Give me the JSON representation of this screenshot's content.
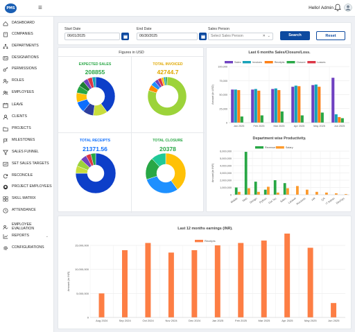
{
  "brand": {
    "logo_text": "PMS"
  },
  "header": {
    "greeting": "Hello! Admin"
  },
  "sidebar": {
    "items": [
      {
        "label": "DASHBOARD",
        "icon": "home-icon"
      },
      {
        "label": "COMPANIES",
        "icon": "building-icon"
      },
      {
        "label": "DEPARTMENTS",
        "icon": "sitemap-icon"
      },
      {
        "label": "DESIGNATIONS",
        "icon": "id-card-icon"
      },
      {
        "label": "PERMISSIONS",
        "icon": "key-icon"
      },
      {
        "label": "ROLES",
        "icon": "user-shield-icon"
      },
      {
        "label": "EMPLOYEES",
        "icon": "users-icon"
      },
      {
        "label": "LEAVE",
        "icon": "calendar-icon"
      },
      {
        "label": "CLIENTS",
        "icon": "user-icon"
      },
      {
        "label": "PROJECTS",
        "icon": "folder-icon"
      },
      {
        "label": "MILESTONES",
        "icon": "flag-icon"
      },
      {
        "label": "SALES FUNNEL",
        "icon": "funnel-icon"
      },
      {
        "label": "SET SALES TARGETS",
        "icon": "target-icon"
      },
      {
        "label": "RECONCILE",
        "icon": "refresh-icon"
      },
      {
        "label": "PROJECT EMPLOYEES",
        "icon": "github-icon"
      },
      {
        "label": "SKILL MATRIX",
        "icon": "grid-icon"
      },
      {
        "label": "ATTENDANCE",
        "icon": "clock-icon"
      },
      {
        "label": "EMPLOYEE\nEVALUATION",
        "icon": "person-check-icon"
      },
      {
        "label": "REPORTS",
        "icon": "chart-icon"
      },
      {
        "label": "CONFIGURATIONS",
        "icon": "gear-icon"
      }
    ]
  },
  "filters": {
    "start_label": "Start Date",
    "start_value": "06/01/2025",
    "end_label": "End Date",
    "end_value": "06/30/2025",
    "sales_label": "Sales Person",
    "sales_placeholder": "Select Sales Person",
    "search": "Search",
    "reset": "Reset"
  },
  "figures": {
    "title": "Figures in USD",
    "cards": [
      {
        "label": "EXPECTED SALES",
        "value": "208855",
        "color": "#28a745"
      },
      {
        "label": "TOTAL INVOICED",
        "value": "42744.7",
        "color": "#e0a800"
      },
      {
        "label": "TOTAL RECEIPTS",
        "value": "21371.56",
        "color": "#0d6efd"
      },
      {
        "label": "TOTAL CLOSURE",
        "value": "20378",
        "color": "#28a745"
      }
    ]
  },
  "chart_data": [
    {
      "type": "pie",
      "title": "",
      "donut": true,
      "values": [
        40,
        12,
        9,
        9,
        8,
        6,
        5,
        4,
        4,
        3
      ],
      "colors": [
        "#0d3fc9",
        "#c8dd3c",
        "#2c3e9e",
        "#0d6efd",
        "#ffc107",
        "#28a745",
        "#1e7e34",
        "#6f42c1",
        "#dc3545",
        "#17a2b8"
      ]
    },
    {
      "type": "pie",
      "title": "",
      "donut": true,
      "values": [
        80,
        5,
        4,
        3,
        3,
        2,
        1.5,
        1.5
      ],
      "colors": [
        "#9cd33a",
        "#ff8c00",
        "#1e90ff",
        "#6f42c1",
        "#dc3545",
        "#ffc107",
        "#17a2b8",
        "#28a745"
      ]
    },
    {
      "type": "pie",
      "title": "",
      "donut": true,
      "values": [
        75,
        6,
        6,
        5,
        4,
        4
      ],
      "colors": [
        "#0d3fc9",
        "#c8dd3c",
        "#9cd33a",
        "#6f42c1",
        "#dc3545",
        "#28a745"
      ]
    },
    {
      "type": "pie",
      "title": "",
      "donut": true,
      "values": [
        40,
        30,
        18,
        12
      ],
      "colors": [
        "#ffc107",
        "#1e90ff",
        "#28a745",
        "#20c997"
      ]
    },
    {
      "type": "bar",
      "title": "Last 6 months Sales/Closure/Loss.",
      "ylabel": "Amount (in USD)",
      "categories": [
        "Jan 2025",
        "Feb 2025",
        "Mar 2025",
        "Apr 2025",
        "May 2025",
        "Jun 2025"
      ],
      "ylim": [
        0,
        100000
      ],
      "yticks": [
        0,
        25000,
        50000,
        75000,
        100000
      ],
      "yticklabels": [
        "0",
        "25,000",
        "50,000",
        "75,000",
        "100,000"
      ],
      "legend_position": "top",
      "series": [
        {
          "name": "Sales",
          "color": "#6f42c1",
          "values": [
            59000,
            59000,
            60000,
            64000,
            67000,
            80000
          ]
        },
        {
          "name": "Invoices",
          "color": "#17a2b8",
          "values": [
            59000,
            60000,
            61000,
            66000,
            68000,
            15000
          ]
        },
        {
          "name": "Receipts",
          "color": "#fd7e14",
          "values": [
            58000,
            57000,
            58000,
            65000,
            64000,
            10000
          ]
        },
        {
          "name": "Closure",
          "color": "#28a745",
          "values": [
            11000,
            13000,
            20000,
            13000,
            18000,
            8000
          ]
        },
        {
          "name": "Losses",
          "color": "#dc3545",
          "values": [
            0,
            0,
            0,
            0,
            0,
            0
          ]
        }
      ]
    },
    {
      "type": "bar",
      "title": "Department wise Productivity.",
      "ylabel": "Amount (in INR)",
      "categories": [
        "Mobile",
        "Web",
        "Design",
        "Python",
        "Out Tec",
        "Sales",
        "Laravel",
        "Accounts",
        "HR",
        "QA",
        "IT Admin",
        "DevOps"
      ],
      "ylim": [
        0,
        6000000
      ],
      "yticks": [
        0,
        1000000,
        2000000,
        3000000,
        4000000,
        5000000,
        6000000
      ],
      "yticklabels": [
        "0",
        "1,000,000",
        "2,000,000",
        "3,000,000",
        "4,000,000",
        "5,000,000",
        "6,000,000"
      ],
      "legend_position": "top",
      "series": [
        {
          "name": "Revenue",
          "color": "#28a745",
          "values": [
            1000000,
            5900000,
            1800000,
            700000,
            2000000,
            1600000,
            0,
            0,
            0,
            0,
            0,
            0
          ]
        },
        {
          "name": "Salary",
          "color": "#fd9a2c",
          "values": [
            400000,
            900000,
            400000,
            1100000,
            300000,
            900000,
            1200000,
            700000,
            400000,
            300000,
            200000,
            100000
          ]
        }
      ]
    },
    {
      "type": "bar",
      "title": "Last 12 months earnings (INR).",
      "ylabel": "Amount (in INR)",
      "categories": [
        "Aug 2024",
        "Sep 2024",
        "Oct 2024",
        "Nov 2024",
        "Dec 2024",
        "Jan 2025",
        "Feb 2025",
        "Mar 2025",
        "Apr 2025",
        "May 2025",
        "Jun 2025"
      ],
      "ylim": [
        0,
        15000000
      ],
      "yticks": [
        0,
        5000000,
        10000000,
        15000000
      ],
      "yticklabels": [
        "0",
        "5,000,000",
        "10,000,000",
        "15,000,000"
      ],
      "legend_position": "top",
      "series": [
        {
          "name": "Receipts",
          "color": "#fd7e44",
          "values": [
            5000000,
            14000000,
            15500000,
            13500000,
            14000000,
            15000000,
            15500000,
            16000000,
            17500000,
            14500000,
            3000000
          ]
        }
      ]
    }
  ]
}
